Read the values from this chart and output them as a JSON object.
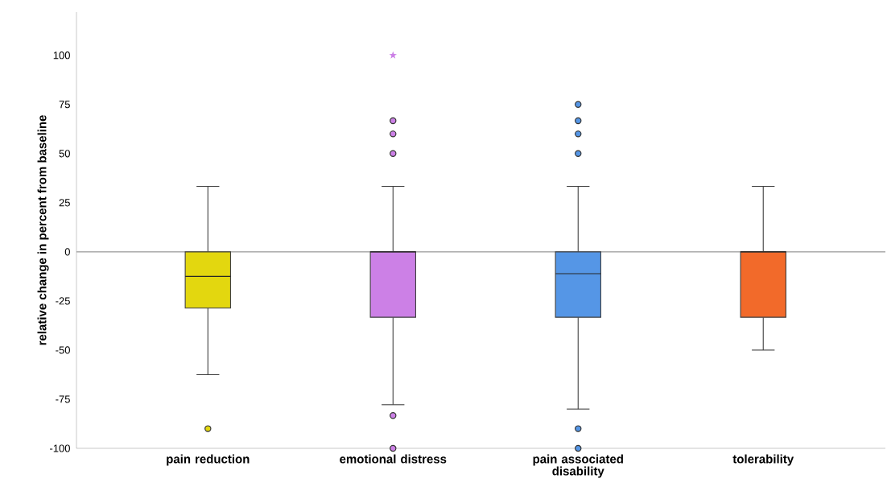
{
  "chart_data": {
    "type": "box",
    "ylabel": "relative change in percent from baseline",
    "categories": [
      "pain reduction",
      "emotional distress",
      "pain associated disability",
      "tolerability"
    ],
    "colors": [
      "#e3d70f",
      "#cc80e6",
      "#5596e6",
      "#f26a2a"
    ],
    "marker": "circle",
    "ylim": [
      -100,
      122
    ],
    "yticks": [
      -100,
      -75,
      -50,
      -25,
      0,
      25,
      50,
      75,
      100
    ],
    "boxes": [
      {
        "low": -62.5,
        "q1": -28.6,
        "median": -12.5,
        "q3": 0,
        "high": 33.3,
        "outliers": [
          -90
        ]
      },
      {
        "low": -77.8,
        "q1": -33.3,
        "median": 0,
        "q3": 0,
        "high": 33.3,
        "outliers": [
          50,
          60,
          66.7,
          -83.3,
          -100
        ]
      },
      {
        "low": -80,
        "q1": -33.3,
        "median": -11.1,
        "q3": 0,
        "high": 33.3,
        "outliers": [
          50,
          60,
          66.7,
          75,
          -90,
          -100
        ]
      },
      {
        "low": -50,
        "q1": -33.3,
        "median": 0,
        "q3": 0,
        "high": 33.3
      }
    ],
    "series": [
      {
        "type": "scatter",
        "marker": "star",
        "color": "#cc80e6",
        "x": [
          "emotional distress"
        ],
        "values": [
          100
        ]
      }
    ],
    "ref_lines": [
      {
        "axis": "y",
        "value": 0,
        "color": "#999999"
      }
    ]
  }
}
